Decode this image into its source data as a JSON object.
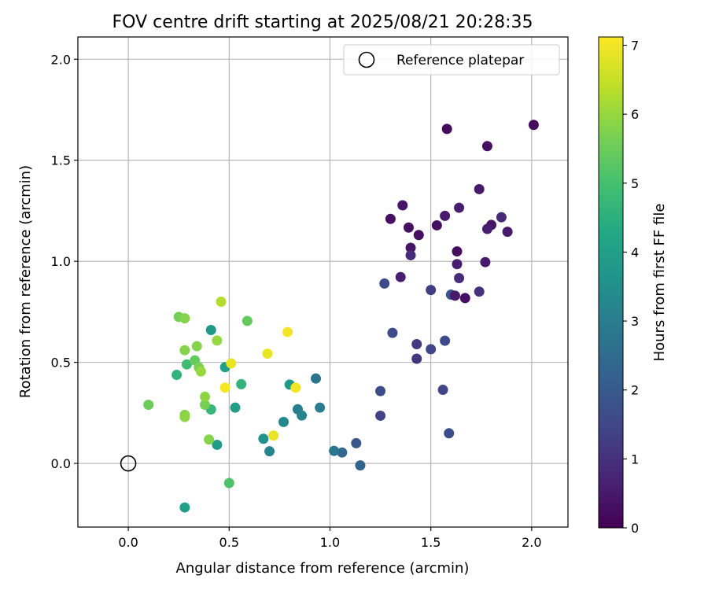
{
  "chart_data": {
    "type": "scatter",
    "title": "FOV centre drift starting at 2025/08/21 20:28:35",
    "xlabel": "Angular distance from reference (arcmin)",
    "ylabel": "Rotation from reference (arcmin)",
    "xlim": [
      -0.25,
      2.18
    ],
    "ylim": [
      -0.315,
      2.11
    ],
    "xticks": [
      "0.0",
      "0.5",
      "1.0",
      "1.5",
      "2.0"
    ],
    "yticks": [
      "0.0",
      "0.5",
      "1.0",
      "1.5",
      "2.0"
    ],
    "grid": true,
    "legend": {
      "placement": "top-right",
      "entries": [
        "Reference platepar"
      ]
    },
    "reference_point": {
      "x": 0.0,
      "y": 0.0
    },
    "colorbar": {
      "label": "Hours from first FF file",
      "range": [
        0,
        7.12
      ],
      "ticks": [
        "0",
        "1",
        "2",
        "3",
        "4",
        "5",
        "6",
        "7"
      ],
      "colormap": "viridis"
    },
    "points": [
      {
        "x": 2.01,
        "y": 1.675,
        "h": 0.2
      },
      {
        "x": 1.58,
        "y": 1.655,
        "h": 0.2
      },
      {
        "x": 1.78,
        "y": 1.57,
        "h": 0.3
      },
      {
        "x": 1.74,
        "y": 1.357,
        "h": 0.5
      },
      {
        "x": 1.36,
        "y": 1.277,
        "h": 0.4
      },
      {
        "x": 1.64,
        "y": 1.265,
        "h": 0.6
      },
      {
        "x": 1.57,
        "y": 1.225,
        "h": 0.5
      },
      {
        "x": 1.85,
        "y": 1.218,
        "h": 0.8
      },
      {
        "x": 1.3,
        "y": 1.21,
        "h": 0.3
      },
      {
        "x": 1.8,
        "y": 1.18,
        "h": 0.4
      },
      {
        "x": 1.53,
        "y": 1.178,
        "h": 0.3
      },
      {
        "x": 1.39,
        "y": 1.167,
        "h": 0.3
      },
      {
        "x": 1.78,
        "y": 1.16,
        "h": 0.6
      },
      {
        "x": 1.88,
        "y": 1.146,
        "h": 0.5
      },
      {
        "x": 1.44,
        "y": 1.13,
        "h": 0.3
      },
      {
        "x": 1.4,
        "y": 1.067,
        "h": 0.4
      },
      {
        "x": 1.63,
        "y": 1.049,
        "h": 0.2
      },
      {
        "x": 1.4,
        "y": 1.03,
        "h": 0.9
      },
      {
        "x": 1.77,
        "y": 0.996,
        "h": 0.5
      },
      {
        "x": 1.63,
        "y": 0.986,
        "h": 0.6
      },
      {
        "x": 1.35,
        "y": 0.922,
        "h": 0.6
      },
      {
        "x": 1.64,
        "y": 0.917,
        "h": 0.9
      },
      {
        "x": 1.27,
        "y": 0.89,
        "h": 1.6
      },
      {
        "x": 1.5,
        "y": 0.858,
        "h": 1.3
      },
      {
        "x": 1.74,
        "y": 0.85,
        "h": 1.0
      },
      {
        "x": 1.6,
        "y": 0.835,
        "h": 1.8
      },
      {
        "x": 1.62,
        "y": 0.83,
        "h": 0.5
      },
      {
        "x": 1.67,
        "y": 0.818,
        "h": 0.3
      },
      {
        "x": 1.31,
        "y": 0.646,
        "h": 1.6
      },
      {
        "x": 1.57,
        "y": 0.607,
        "h": 1.6
      },
      {
        "x": 1.43,
        "y": 0.59,
        "h": 1.2
      },
      {
        "x": 1.5,
        "y": 0.565,
        "h": 1.5
      },
      {
        "x": 1.43,
        "y": 0.518,
        "h": 1.1
      },
      {
        "x": 1.56,
        "y": 0.364,
        "h": 1.5
      },
      {
        "x": 1.25,
        "y": 0.358,
        "h": 1.7
      },
      {
        "x": 1.25,
        "y": 0.236,
        "h": 1.4
      },
      {
        "x": 1.59,
        "y": 0.149,
        "h": 1.7
      },
      {
        "x": 1.13,
        "y": 0.1,
        "h": 1.9
      },
      {
        "x": 1.15,
        "y": -0.01,
        "h": 2.3
      },
      {
        "x": 1.06,
        "y": 0.054,
        "h": 2.4
      },
      {
        "x": 1.02,
        "y": 0.062,
        "h": 2.8
      },
      {
        "x": 0.93,
        "y": 0.42,
        "h": 2.7
      },
      {
        "x": 0.95,
        "y": 0.276,
        "h": 3.0
      },
      {
        "x": 0.84,
        "y": 0.268,
        "h": 3.0
      },
      {
        "x": 0.86,
        "y": 0.237,
        "h": 3.2
      },
      {
        "x": 0.77,
        "y": 0.205,
        "h": 3.3
      },
      {
        "x": 0.7,
        "y": 0.06,
        "h": 3.2
      },
      {
        "x": 0.67,
        "y": 0.122,
        "h": 3.6
      },
      {
        "x": 0.8,
        "y": 0.39,
        "h": 3.8
      },
      {
        "x": 0.53,
        "y": 0.276,
        "h": 4.0
      },
      {
        "x": 0.41,
        "y": 0.66,
        "h": 3.8
      },
      {
        "x": 0.48,
        "y": 0.476,
        "h": 4.0
      },
      {
        "x": 0.44,
        "y": 0.092,
        "h": 3.9
      },
      {
        "x": 0.28,
        "y": -0.218,
        "h": 4.0
      },
      {
        "x": 0.56,
        "y": 0.392,
        "h": 4.6
      },
      {
        "x": 0.41,
        "y": 0.267,
        "h": 4.7
      },
      {
        "x": 0.24,
        "y": 0.438,
        "h": 4.6
      },
      {
        "x": 0.29,
        "y": 0.49,
        "h": 4.9
      },
      {
        "x": 0.5,
        "y": -0.097,
        "h": 5.1
      },
      {
        "x": 0.59,
        "y": 0.705,
        "h": 5.4
      },
      {
        "x": 0.1,
        "y": 0.29,
        "h": 5.5
      },
      {
        "x": 0.38,
        "y": 0.29,
        "h": 5.6
      },
      {
        "x": 0.33,
        "y": 0.51,
        "h": 5.4
      },
      {
        "x": 0.35,
        "y": 0.475,
        "h": 5.7
      },
      {
        "x": 0.25,
        "y": 0.725,
        "h": 5.6
      },
      {
        "x": 0.28,
        "y": 0.718,
        "h": 5.8
      },
      {
        "x": 0.28,
        "y": 0.56,
        "h": 5.8
      },
      {
        "x": 0.34,
        "y": 0.58,
        "h": 5.8
      },
      {
        "x": 0.36,
        "y": 0.455,
        "h": 6.0
      },
      {
        "x": 0.38,
        "y": 0.33,
        "h": 5.9
      },
      {
        "x": 0.28,
        "y": 0.24,
        "h": 5.8
      },
      {
        "x": 0.28,
        "y": 0.23,
        "h": 5.9
      },
      {
        "x": 0.4,
        "y": 0.118,
        "h": 5.8
      },
      {
        "x": 0.44,
        "y": 0.608,
        "h": 6.0
      },
      {
        "x": 0.46,
        "y": 0.8,
        "h": 6.3
      },
      {
        "x": 0.79,
        "y": 0.65,
        "h": 7.0
      },
      {
        "x": 0.69,
        "y": 0.543,
        "h": 6.9
      },
      {
        "x": 0.51,
        "y": 0.495,
        "h": 6.9
      },
      {
        "x": 0.48,
        "y": 0.375,
        "h": 7.0
      },
      {
        "x": 0.83,
        "y": 0.375,
        "h": 7.0
      },
      {
        "x": 0.72,
        "y": 0.138,
        "h": 6.9
      }
    ]
  }
}
